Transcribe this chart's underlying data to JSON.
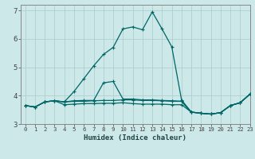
{
  "xlabel": "Humidex (Indice chaleur)",
  "xlim": [
    -0.5,
    23
  ],
  "ylim": [
    3.0,
    7.2
  ],
  "yticks": [
    3,
    4,
    5,
    6,
    7
  ],
  "xticks": [
    0,
    1,
    2,
    3,
    4,
    5,
    6,
    7,
    8,
    9,
    10,
    11,
    12,
    13,
    14,
    15,
    16,
    17,
    18,
    19,
    20,
    21,
    22,
    23
  ],
  "background_color": "#cce8e8",
  "grid_color": "#aacccc",
  "line_color": "#006666",
  "lines": [
    {
      "x": [
        0,
        1,
        2,
        3,
        4,
        5,
        6,
        7,
        8,
        9,
        10,
        11,
        12,
        13,
        14,
        15,
        16,
        17,
        18,
        19,
        20,
        21,
        22,
        23
      ],
      "y": [
        3.65,
        3.6,
        3.78,
        3.82,
        3.78,
        4.15,
        4.6,
        5.05,
        5.45,
        5.7,
        6.35,
        6.42,
        6.32,
        6.95,
        6.35,
        5.72,
        3.85,
        3.42,
        3.38,
        3.35,
        3.4,
        3.65,
        3.75,
        4.05
      ]
    },
    {
      "x": [
        0,
        1,
        2,
        3,
        4,
        5,
        6,
        7,
        8,
        9,
        10,
        11,
        12,
        13,
        14,
        15,
        16,
        17,
        18,
        19,
        20,
        21,
        22,
        23
      ],
      "y": [
        3.65,
        3.6,
        3.78,
        3.82,
        3.78,
        3.82,
        3.83,
        3.83,
        4.45,
        4.5,
        3.88,
        3.88,
        3.85,
        3.85,
        3.83,
        3.82,
        3.8,
        3.42,
        3.38,
        3.35,
        3.4,
        3.65,
        3.75,
        4.05
      ]
    },
    {
      "x": [
        0,
        1,
        2,
        3,
        4,
        5,
        6,
        7,
        8,
        9,
        10,
        11,
        12,
        13,
        14,
        15,
        16,
        17,
        18,
        19,
        20,
        21,
        22,
        23
      ],
      "y": [
        3.65,
        3.6,
        3.78,
        3.82,
        3.78,
        3.8,
        3.8,
        3.82,
        3.83,
        3.83,
        3.85,
        3.85,
        3.83,
        3.83,
        3.82,
        3.8,
        3.8,
        3.42,
        3.38,
        3.35,
        3.4,
        3.65,
        3.75,
        4.05
      ]
    },
    {
      "x": [
        0,
        1,
        2,
        3,
        4,
        5,
        6,
        7,
        8,
        9,
        10,
        11,
        12,
        13,
        14,
        15,
        16,
        17,
        18,
        19,
        20,
        21,
        22,
        23
      ],
      "y": [
        3.65,
        3.6,
        3.78,
        3.82,
        3.68,
        3.7,
        3.72,
        3.72,
        3.73,
        3.73,
        3.75,
        3.72,
        3.7,
        3.7,
        3.7,
        3.68,
        3.68,
        3.42,
        3.38,
        3.35,
        3.4,
        3.65,
        3.75,
        4.05
      ]
    }
  ],
  "marker": "+",
  "marker_size": 3.5,
  "line_width": 0.9
}
